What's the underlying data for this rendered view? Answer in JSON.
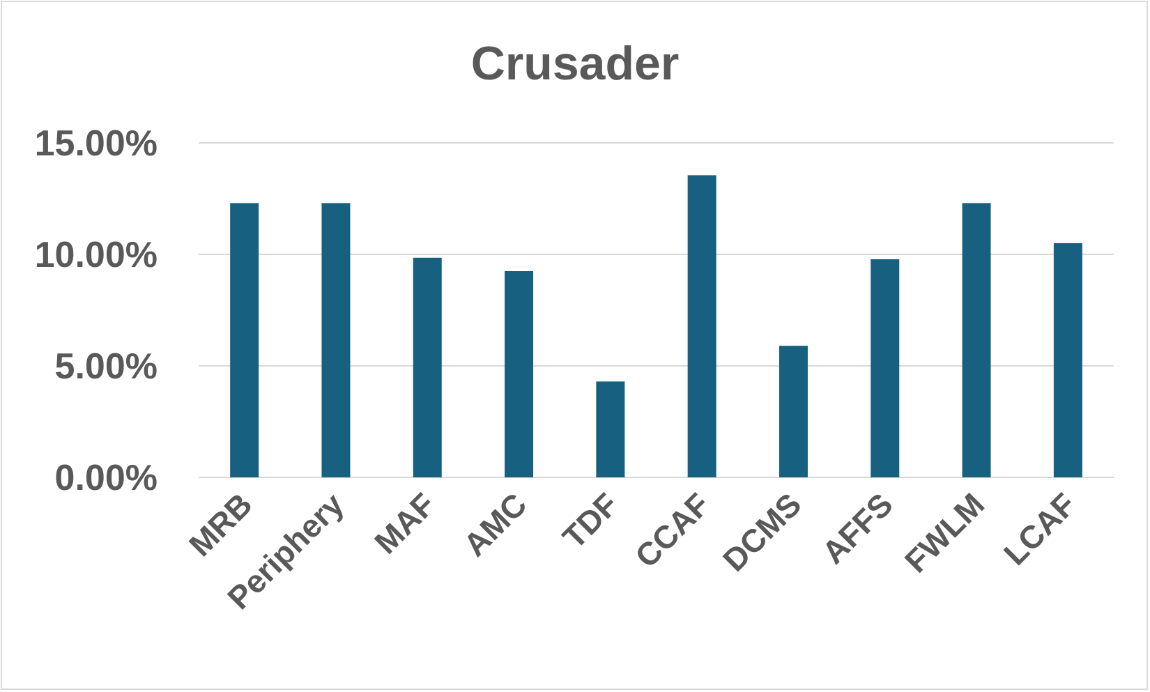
{
  "chart_data": {
    "type": "bar",
    "title": "Crusader",
    "xlabel": "",
    "ylabel": "",
    "categories": [
      "MRB",
      "Periphery",
      "MAF",
      "AMC",
      "TDF",
      "CCAF",
      "DCMS",
      "AFFS",
      "FWLM",
      "LCAF"
    ],
    "values": [
      12.3,
      12.3,
      9.85,
      9.25,
      4.3,
      13.55,
      5.9,
      9.78,
      12.3,
      10.5
    ],
    "ylim": [
      0,
      15
    ],
    "yticks": [
      0,
      5,
      10,
      15
    ],
    "ytick_labels": [
      "0.00%",
      "5.00%",
      "10.00%",
      "15.00%"
    ],
    "grid": true,
    "legend": "none",
    "bar_color": "#17607f"
  }
}
